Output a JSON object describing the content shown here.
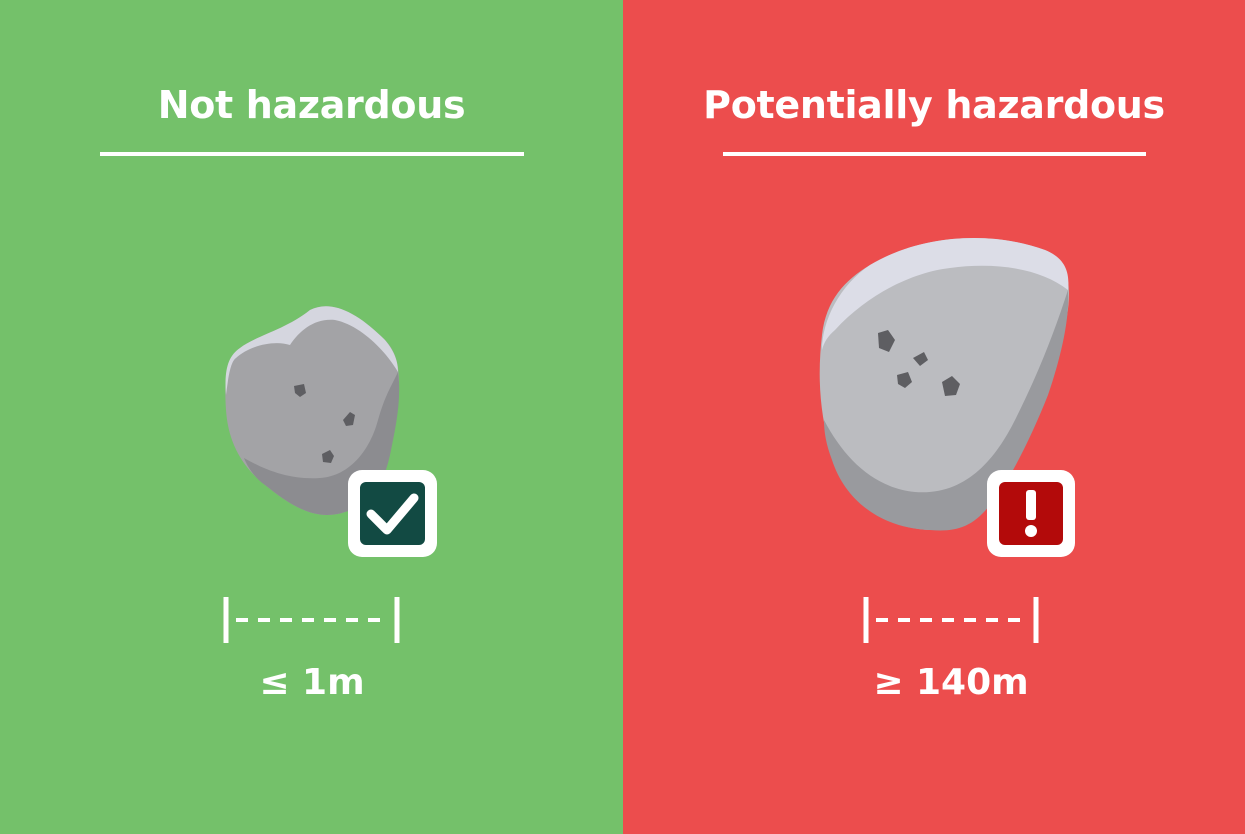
{
  "colors": {
    "safe_background": "#74C16A",
    "hazard_background": "#EC4D4D",
    "rock_main": "#A3A3A6",
    "rock_highlight": "#D5D6DF",
    "rock_shadow": "#8C8C90",
    "check_badge": "#124A43",
    "alert_badge": "#B30A0A"
  },
  "left_panel": {
    "title": "Not hazardous",
    "size_label": "≤ 1m",
    "badge_icon": "checkmark-icon"
  },
  "right_panel": {
    "title": "Potentially hazardous",
    "size_label": "≥ 140m",
    "badge_icon": "exclamation-icon"
  }
}
